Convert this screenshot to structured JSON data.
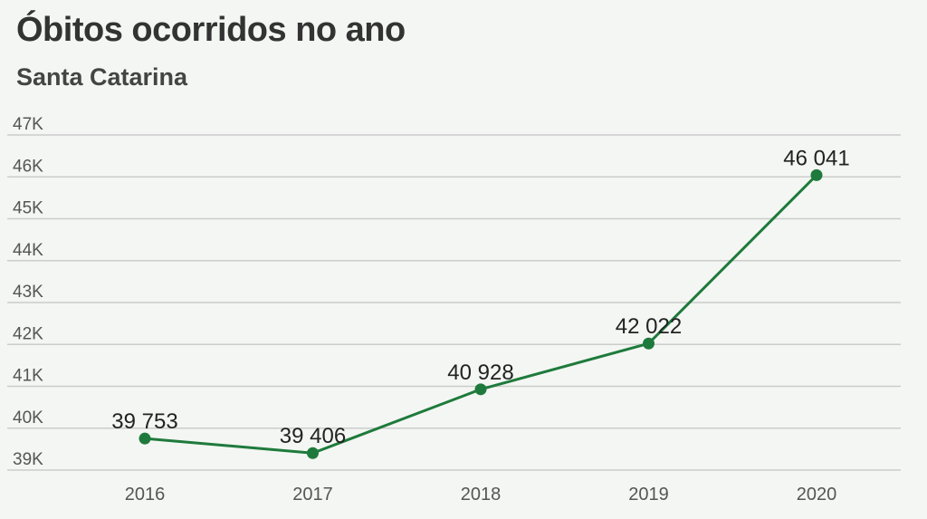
{
  "chart_data": {
    "type": "line",
    "title": "Óbitos ocorridos no ano",
    "subtitle": "Santa Catarina",
    "categories": [
      "2016",
      "2017",
      "2018",
      "2019",
      "2020"
    ],
    "values": [
      39753,
      39406,
      40928,
      42022,
      46041
    ],
    "data_labels": [
      "39 753",
      "39 406",
      "40 928",
      "42 022",
      "46 041"
    ],
    "y_ticks": [
      {
        "value": 39000,
        "label": "39K"
      },
      {
        "value": 40000,
        "label": "40K"
      },
      {
        "value": 41000,
        "label": "41K"
      },
      {
        "value": 42000,
        "label": "42K"
      },
      {
        "value": 43000,
        "label": "43K"
      },
      {
        "value": 44000,
        "label": "44K"
      },
      {
        "value": 45000,
        "label": "45K"
      },
      {
        "value": 46000,
        "label": "46K"
      },
      {
        "value": 47000,
        "label": "47K"
      }
    ],
    "ylim": [
      39000,
      47000
    ],
    "grid": true,
    "legend": "none",
    "colors": {
      "line": "#1e7a3c",
      "grid": "#cccccc",
      "background": "#f3f6f2"
    }
  }
}
